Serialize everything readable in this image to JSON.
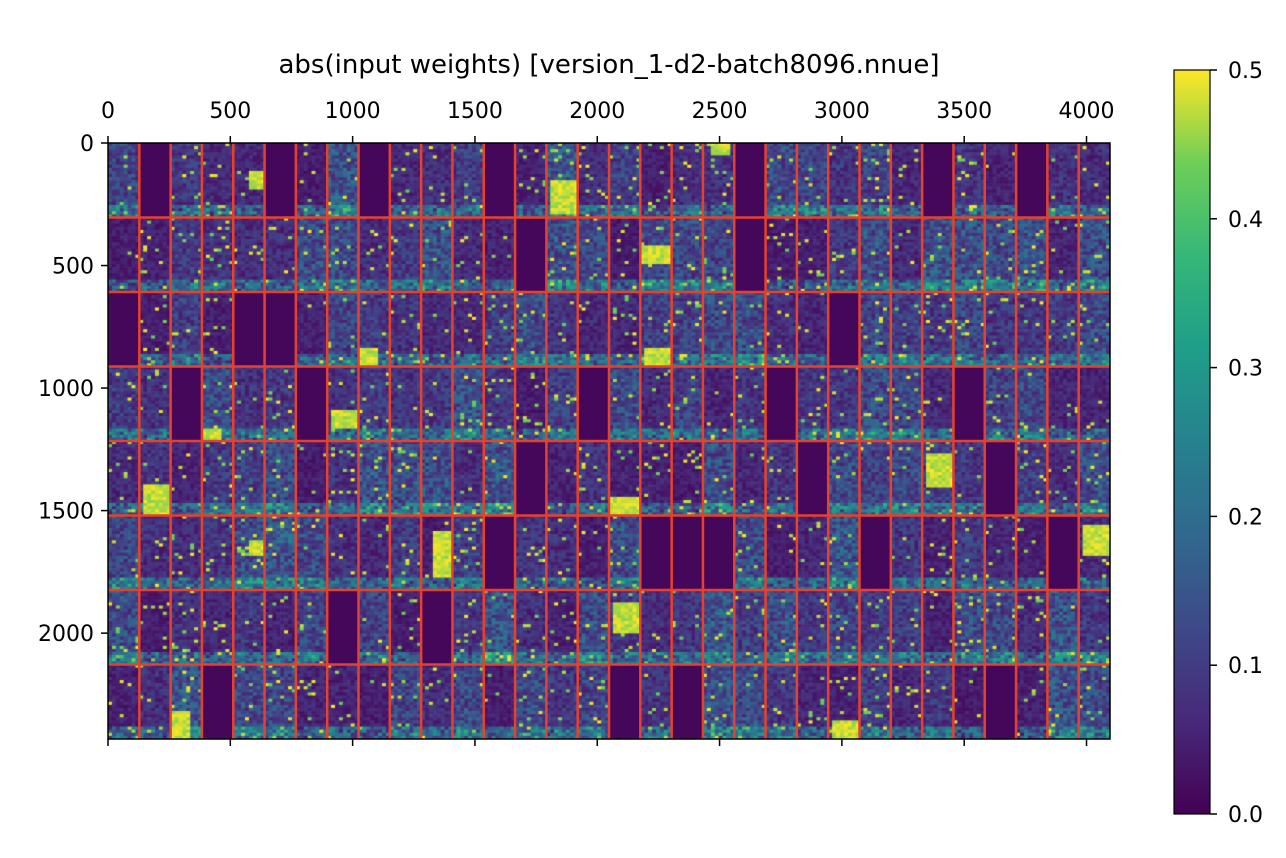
{
  "chart_data": {
    "type": "heatmap",
    "title": "abs(input weights) [version_1-d2-batch8096.nnue]",
    "xlabel": "",
    "ylabel": "",
    "x_ticks": [
      0,
      500,
      1000,
      1500,
      2000,
      2500,
      3000,
      3500,
      4000
    ],
    "y_ticks": [
      0,
      500,
      1000,
      1500,
      2000
    ],
    "xlim": [
      0,
      4096
    ],
    "ylim": [
      2432,
      0
    ],
    "colormap": "viridis",
    "colorbar": {
      "min": 0.0,
      "max": 0.5,
      "ticks": [
        "0.0",
        "0.1",
        "0.2",
        "0.3",
        "0.4",
        "0.5"
      ]
    },
    "grid": {
      "columns": 32,
      "rows": 8,
      "line_color": "#e8402a"
    },
    "dead_blocks": [
      [
        0,
        1
      ],
      [
        0,
        5
      ],
      [
        0,
        8
      ],
      [
        0,
        12
      ],
      [
        0,
        20
      ],
      [
        0,
        26
      ],
      [
        0,
        29
      ],
      [
        1,
        13
      ],
      [
        1,
        20
      ],
      [
        2,
        0
      ],
      [
        2,
        4
      ],
      [
        2,
        5
      ],
      [
        2,
        23
      ],
      [
        3,
        2
      ],
      [
        3,
        6
      ],
      [
        3,
        15
      ],
      [
        3,
        21
      ],
      [
        3,
        27
      ],
      [
        4,
        13
      ],
      [
        4,
        22
      ],
      [
        4,
        28
      ],
      [
        5,
        12
      ],
      [
        5,
        17
      ],
      [
        5,
        18
      ],
      [
        5,
        19
      ],
      [
        5,
        24
      ],
      [
        5,
        30
      ],
      [
        6,
        7
      ],
      [
        6,
        10
      ],
      [
        7,
        3
      ],
      [
        7,
        16
      ],
      [
        7,
        18
      ],
      [
        7,
        28
      ]
    ],
    "bright_patches": [
      [
        0,
        4,
        0.35,
        0.6,
        0.4,
        0.9
      ],
      [
        0,
        14,
        0.5,
        0.95,
        0.1,
        0.9
      ],
      [
        0,
        19,
        0.0,
        0.15,
        0.2,
        0.8
      ],
      [
        1,
        17,
        0.35,
        0.6,
        0.0,
        0.9
      ],
      [
        1,
        13,
        0.75,
        1.0,
        0.0,
        0.6
      ],
      [
        2,
        17,
        0.75,
        1.0,
        0.1,
        0.9
      ],
      [
        2,
        8,
        0.75,
        1.0,
        0.0,
        0.6
      ],
      [
        3,
        7,
        0.55,
        0.8,
        0.1,
        0.9
      ],
      [
        3,
        3,
        0.8,
        1.0,
        0.0,
        0.5
      ],
      [
        4,
        1,
        0.55,
        1.0,
        0.1,
        0.9
      ],
      [
        4,
        26,
        0.15,
        0.6,
        0.1,
        0.95
      ],
      [
        4,
        16,
        0.75,
        1.0,
        0.0,
        0.9
      ],
      [
        5,
        10,
        0.2,
        0.8,
        0.3,
        1.0
      ],
      [
        5,
        4,
        0.3,
        0.5,
        0.5,
        1.0
      ],
      [
        5,
        31,
        0.1,
        0.5,
        0.1,
        1.0
      ],
      [
        6,
        16,
        0.15,
        0.55,
        0.1,
        0.9
      ],
      [
        7,
        23,
        0.75,
        1.0,
        0.1,
        0.95
      ],
      [
        7,
        2,
        0.6,
        1.0,
        0.0,
        0.5
      ]
    ]
  }
}
